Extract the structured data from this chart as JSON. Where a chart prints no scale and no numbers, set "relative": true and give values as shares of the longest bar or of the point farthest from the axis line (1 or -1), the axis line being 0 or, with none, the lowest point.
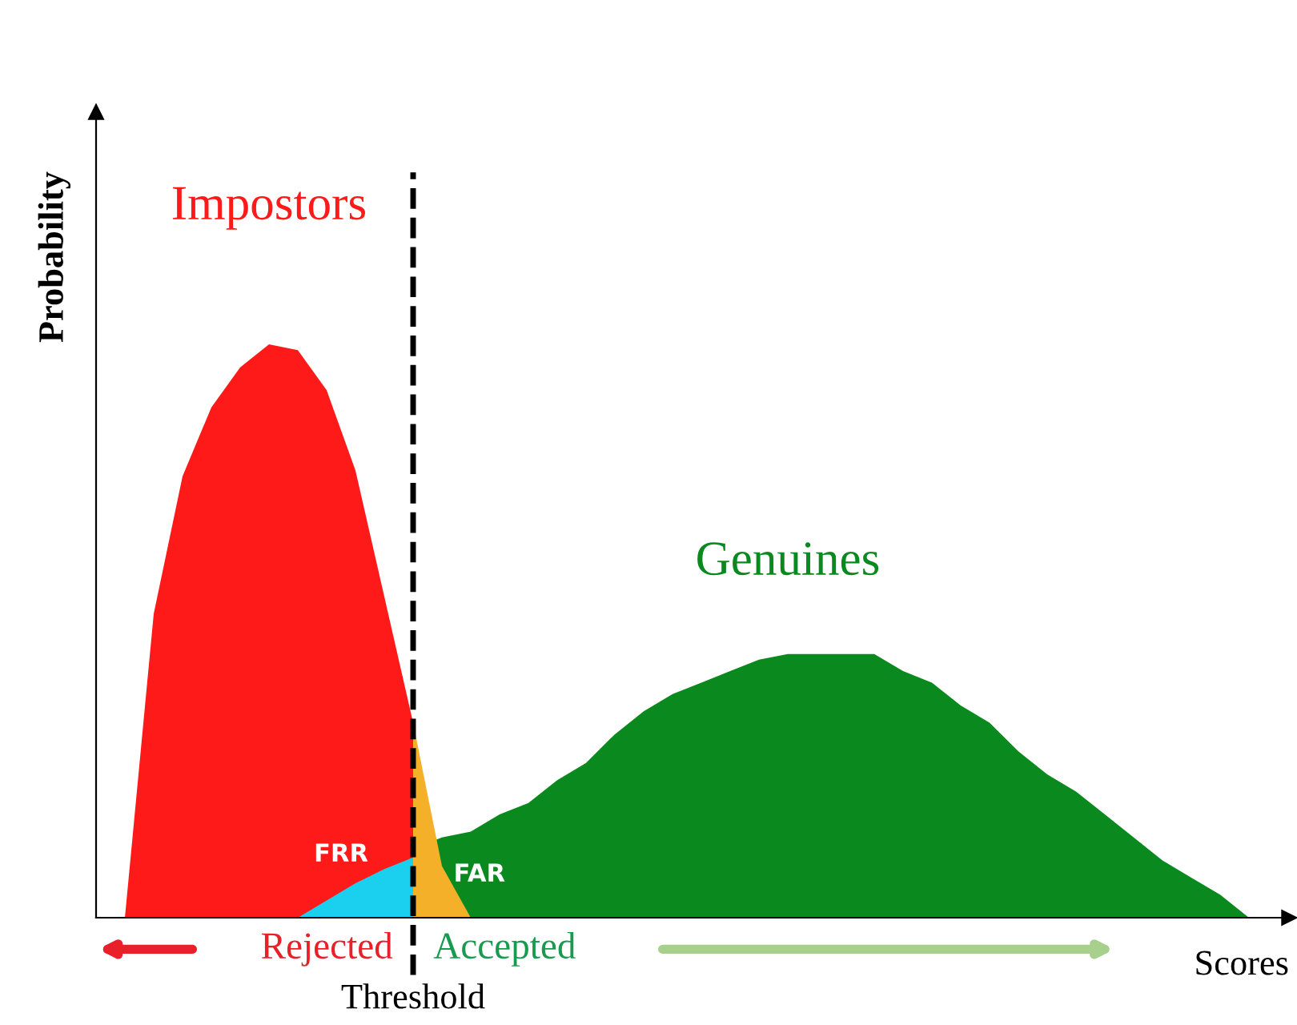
{
  "chart_data": {
    "type": "area",
    "relative": true,
    "ylabel": "Probability",
    "xlabel": "Scores",
    "categories": [
      null,
      null,
      null,
      null,
      null,
      null,
      null,
      null,
      null,
      null,
      null,
      null,
      null,
      null,
      null,
      null,
      null,
      null,
      null,
      null,
      null,
      null,
      null,
      null,
      null,
      null,
      null,
      null,
      null,
      null,
      null,
      null,
      null,
      null,
      null,
      null,
      null,
      null,
      null,
      null,
      null,
      null
    ],
    "series": [
      {
        "name": "Impostors",
        "color": "#ff1a1a",
        "values": [
          null,
          0,
          0.53,
          0.77,
          0.89,
          0.96,
          1,
          0.99,
          0.92,
          0.78,
          0.56,
          0.34,
          null,
          null,
          null,
          null,
          null,
          null,
          null,
          null,
          null,
          null,
          null,
          null,
          null,
          null,
          null,
          null,
          null,
          null,
          null,
          null,
          null,
          null,
          null,
          null,
          null,
          null,
          null,
          null,
          null,
          null
        ]
      },
      {
        "color": "#1ad0ee",
        "values": [
          null,
          null,
          null,
          null,
          null,
          null,
          null,
          0,
          0.03,
          0.06,
          0.085,
          0.105,
          null,
          null,
          null,
          null,
          null,
          null,
          null,
          null,
          null,
          null,
          null,
          null,
          null,
          null,
          null,
          null,
          null,
          null,
          null,
          null,
          null,
          null,
          null,
          null,
          null,
          null,
          null,
          null,
          null,
          null
        ]
      },
      {
        "name": "Genuines",
        "color": "#0a8a1e",
        "values": [
          null,
          null,
          null,
          null,
          null,
          null,
          null,
          null,
          null,
          null,
          null,
          0.12,
          0.14,
          0.15,
          0.18,
          0.2,
          0.24,
          0.27,
          0.32,
          0.36,
          0.39,
          0.41,
          0.43,
          0.45,
          0.46,
          0.46,
          0.46,
          0.46,
          0.43,
          0.41,
          0.37,
          0.34,
          0.29,
          0.25,
          0.22,
          0.18,
          0.14,
          0.1,
          0.07,
          0.04,
          0,
          null
        ]
      },
      {
        "color": "#f5b02a",
        "values": [
          null,
          null,
          null,
          null,
          null,
          null,
          null,
          null,
          null,
          null,
          null,
          0.34,
          0.09,
          0,
          null,
          null,
          null,
          null,
          null,
          null,
          null,
          null,
          null,
          null,
          null,
          null,
          null,
          null,
          null,
          null,
          null,
          null,
          null,
          null,
          null,
          null,
          null,
          null,
          null,
          null,
          null,
          null
        ]
      }
    ],
    "annotations": [
      "Rejected",
      "Accepted",
      "Threshold",
      "FRR",
      "FAR"
    ],
    "legend": false,
    "grid": false
  }
}
